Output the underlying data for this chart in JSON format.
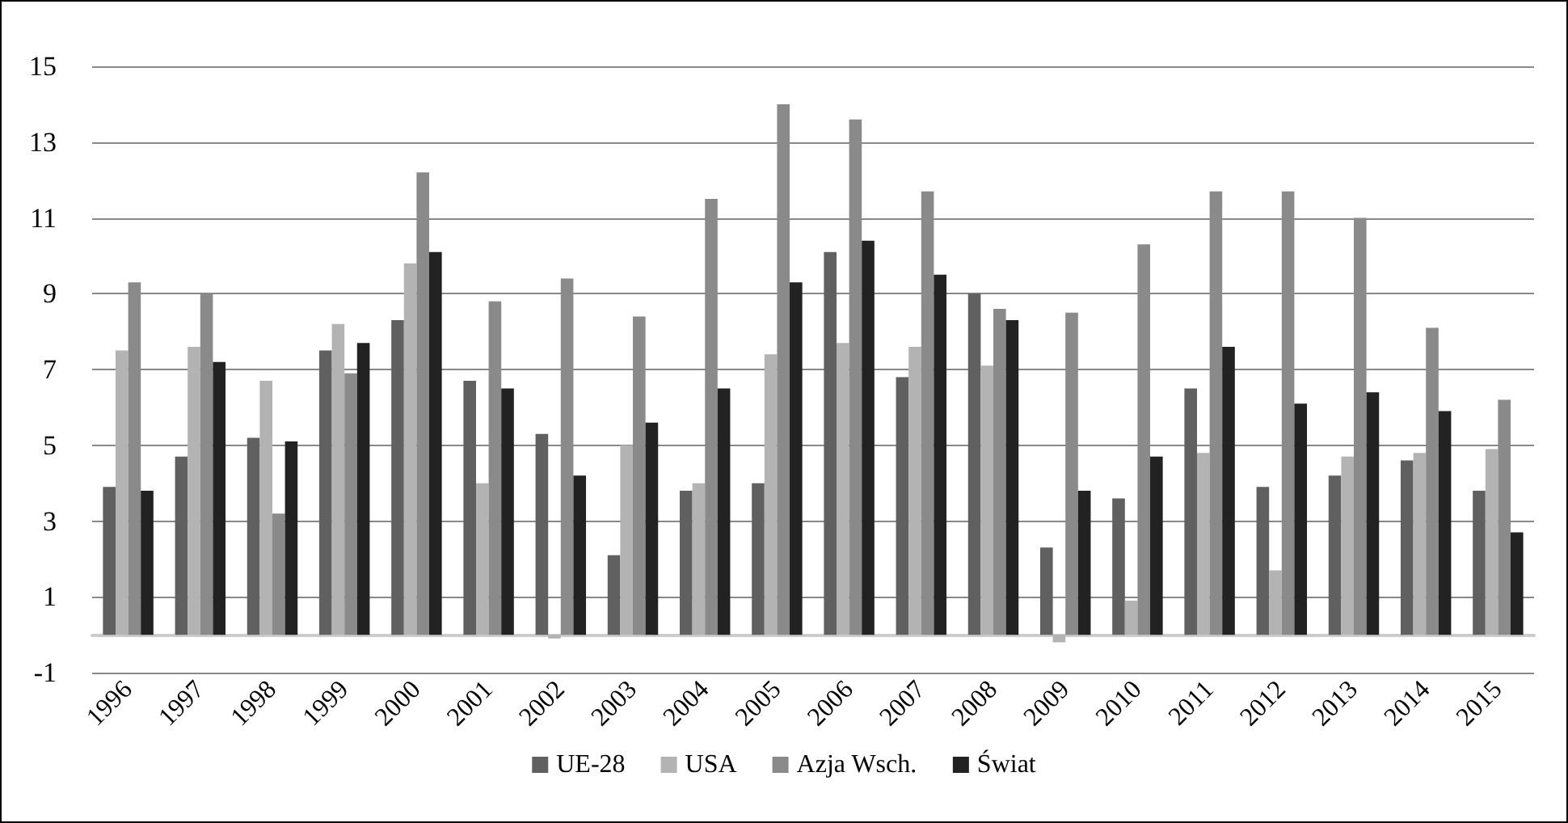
{
  "chart_data": {
    "type": "bar",
    "categories": [
      "1996",
      "1997",
      "1998",
      "1999",
      "2000",
      "2001",
      "2002",
      "2003",
      "2004",
      "2005",
      "2006",
      "2007",
      "2008",
      "2009",
      "2010",
      "2011",
      "2012",
      "2013",
      "2014",
      "2015"
    ],
    "series": [
      {
        "name": "UE-28",
        "color": "#606060",
        "values": [
          3.9,
          4.7,
          5.2,
          7.5,
          8.3,
          6.7,
          5.3,
          2.1,
          3.8,
          4.0,
          10.1,
          6.8,
          9.0,
          2.3,
          3.6,
          6.5,
          3.9,
          4.2,
          4.6,
          3.8
        ]
      },
      {
        "name": "USA",
        "color": "#b3b3b3",
        "values": [
          7.5,
          7.6,
          6.7,
          8.2,
          9.8,
          4.0,
          -0.1,
          5.0,
          4.0,
          7.4,
          7.7,
          7.6,
          7.1,
          -0.2,
          0.9,
          4.8,
          1.7,
          4.7,
          4.8,
          4.9
        ]
      },
      {
        "name": "Azja Wsch.",
        "color": "#8a8a8a",
        "values": [
          9.3,
          9.0,
          3.2,
          6.9,
          12.2,
          8.8,
          9.4,
          8.4,
          11.5,
          14.0,
          13.6,
          11.7,
          8.6,
          8.5,
          10.3,
          11.7,
          11.7,
          11.0,
          8.1,
          6.2
        ]
      },
      {
        "name": "Świat",
        "color": "#222222",
        "values": [
          3.8,
          7.2,
          5.1,
          7.7,
          10.1,
          6.5,
          4.2,
          5.6,
          6.5,
          9.3,
          10.4,
          9.5,
          8.3,
          3.8,
          4.7,
          7.6,
          6.1,
          6.4,
          5.9,
          2.7
        ]
      }
    ],
    "ylim": [
      -1,
      15
    ],
    "yticks": [
      -1,
      1,
      3,
      5,
      7,
      9,
      11,
      13,
      15
    ],
    "grid": "y",
    "legend": "bottom"
  }
}
